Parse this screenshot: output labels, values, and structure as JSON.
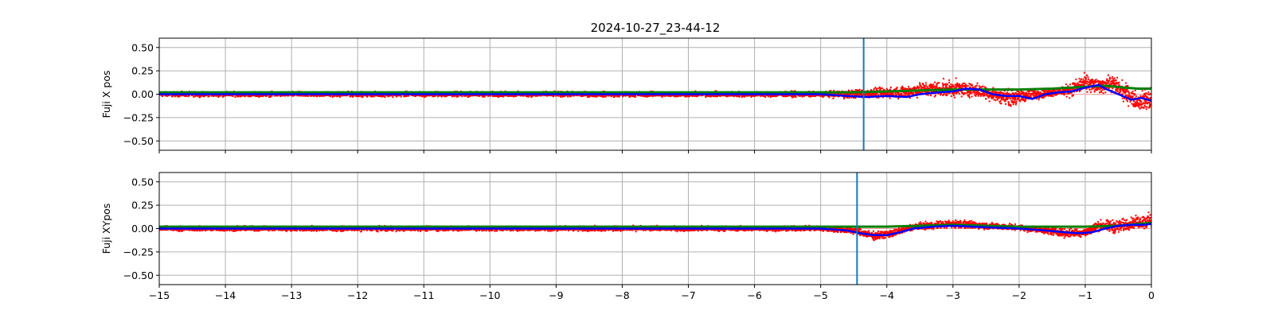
{
  "chart_data": {
    "type": "scatter",
    "title": "2024-10-27_23-44-12",
    "xlim": [
      -15,
      0
    ],
    "x_ticks": [
      -15,
      -14,
      -13,
      -12,
      -11,
      -10,
      -9,
      -8,
      -7,
      -6,
      -5,
      -4,
      -3,
      -2,
      -1,
      0
    ],
    "x_tick_labels": [
      "−15",
      "−14",
      "−13",
      "−12",
      "−11",
      "−10",
      "−9",
      "−8",
      "−7",
      "−6",
      "−5",
      "−4",
      "−3",
      "−2",
      "−1",
      "0"
    ],
    "grid": true,
    "colors": {
      "scatter": "#ff0000",
      "green_line": "#008000",
      "blue_line": "#0000ff",
      "vline": "#1f77b4",
      "zero_line": "#ff9999"
    },
    "panels": [
      {
        "ylabel": "Fuji X pos",
        "ylim": [
          -0.6,
          0.6
        ],
        "y_ticks": [
          0.5,
          0.25,
          0.0,
          -0.25,
          -0.5
        ],
        "y_tick_labels": [
          "0.50",
          "0.25",
          "0.00",
          "−0.25",
          "−0.50"
        ],
        "vline_x": -4.35,
        "show_x_tick_labels": false,
        "scatter_envelope": [
          [
            -15,
            0.0,
            0.035
          ],
          [
            -5,
            0.0,
            0.04
          ],
          [
            -4.6,
            0.0,
            0.06
          ],
          [
            -4.2,
            0.01,
            0.07
          ],
          [
            -3.8,
            0.02,
            0.08
          ],
          [
            -3.5,
            0.05,
            0.1
          ],
          [
            -3.0,
            0.06,
            0.12
          ],
          [
            -2.7,
            0.05,
            0.1
          ],
          [
            -2.4,
            0.0,
            0.1
          ],
          [
            -2.1,
            -0.04,
            0.12
          ],
          [
            -1.8,
            0.0,
            0.08
          ],
          [
            -1.5,
            0.02,
            0.06
          ],
          [
            -1.2,
            0.05,
            0.1
          ],
          [
            -1.0,
            0.12,
            0.13
          ],
          [
            -0.8,
            0.08,
            0.1
          ],
          [
            -0.6,
            0.12,
            0.12
          ],
          [
            -0.4,
            0.02,
            0.14
          ],
          [
            -0.2,
            -0.08,
            0.12
          ],
          [
            0.0,
            -0.05,
            0.2
          ]
        ],
        "green_line": [
          [
            -15,
            0.02
          ],
          [
            -12,
            0.02
          ],
          [
            -9,
            0.02
          ],
          [
            -6,
            0.02
          ],
          [
            -5,
            0.02
          ],
          [
            -4.5,
            0.02
          ],
          [
            -4.0,
            0.03
          ],
          [
            -3.5,
            0.04
          ],
          [
            -3.0,
            0.05
          ],
          [
            -2.5,
            0.05
          ],
          [
            -2.0,
            0.05
          ],
          [
            -1.5,
            0.06
          ],
          [
            -1.0,
            0.08
          ],
          [
            -0.7,
            0.09
          ],
          [
            -0.4,
            0.07
          ],
          [
            -0.2,
            0.06
          ],
          [
            0.0,
            0.06
          ]
        ],
        "blue_line": [
          [
            -15,
            0.0
          ],
          [
            -10,
            0.0
          ],
          [
            -5,
            0.0
          ],
          [
            -4.6,
            -0.02
          ],
          [
            -4.3,
            -0.03
          ],
          [
            -4.0,
            -0.02
          ],
          [
            -3.7,
            -0.03
          ],
          [
            -3.5,
            0.0
          ],
          [
            -3.2,
            0.02
          ],
          [
            -3.0,
            0.03
          ],
          [
            -2.8,
            0.06
          ],
          [
            -2.6,
            0.05
          ],
          [
            -2.4,
            0.0
          ],
          [
            -2.2,
            -0.02
          ],
          [
            -2.0,
            -0.02
          ],
          [
            -1.8,
            -0.05
          ],
          [
            -1.6,
            0.0
          ],
          [
            -1.4,
            0.02
          ],
          [
            -1.2,
            0.03
          ],
          [
            -1.0,
            0.07
          ],
          [
            -0.8,
            0.1
          ],
          [
            -0.7,
            0.06
          ],
          [
            -0.5,
            0.0
          ],
          [
            -0.3,
            -0.06
          ],
          [
            -0.15,
            -0.04
          ],
          [
            0.0,
            -0.07
          ]
        ]
      },
      {
        "ylabel": "Fuji XYpos",
        "ylim": [
          -0.6,
          0.6
        ],
        "y_ticks": [
          0.5,
          0.25,
          0.0,
          -0.25,
          -0.5
        ],
        "y_tick_labels": [
          "0.50",
          "0.25",
          "0.00",
          "−0.25",
          "−0.50"
        ],
        "vline_x": -4.45,
        "show_x_tick_labels": true,
        "scatter_envelope": [
          [
            -15,
            0.0,
            0.035
          ],
          [
            -5,
            0.0,
            0.035
          ],
          [
            -4.5,
            -0.02,
            0.05
          ],
          [
            -4.2,
            -0.08,
            0.06
          ],
          [
            -3.9,
            -0.05,
            0.05
          ],
          [
            -3.6,
            0.02,
            0.05
          ],
          [
            -3.0,
            0.05,
            0.06
          ],
          [
            -2.5,
            0.03,
            0.05
          ],
          [
            -2.0,
            0.01,
            0.04
          ],
          [
            -1.6,
            -0.02,
            0.05
          ],
          [
            -1.3,
            -0.05,
            0.06
          ],
          [
            -1.0,
            -0.04,
            0.06
          ],
          [
            -0.8,
            0.03,
            0.08
          ],
          [
            -0.5,
            0.02,
            0.1
          ],
          [
            -0.3,
            0.06,
            0.08
          ],
          [
            0.0,
            0.08,
            0.12
          ]
        ],
        "green_line": [
          [
            -15,
            0.02
          ],
          [
            -10,
            0.02
          ],
          [
            -5,
            0.02
          ],
          [
            -4.5,
            0.02
          ],
          [
            -4.0,
            0.02
          ],
          [
            -3.5,
            0.03
          ],
          [
            -3.0,
            0.04
          ],
          [
            -2.5,
            0.03
          ],
          [
            -2.0,
            0.02
          ],
          [
            -1.5,
            0.02
          ],
          [
            -1.0,
            0.02
          ],
          [
            -0.5,
            0.03
          ],
          [
            -0.2,
            0.05
          ],
          [
            0.0,
            0.06
          ]
        ],
        "blue_line": [
          [
            -15,
            0.0
          ],
          [
            -10,
            0.0
          ],
          [
            -5,
            0.0
          ],
          [
            -4.6,
            -0.02
          ],
          [
            -4.4,
            -0.05
          ],
          [
            -4.2,
            -0.07
          ],
          [
            -4.0,
            -0.07
          ],
          [
            -3.8,
            -0.04
          ],
          [
            -3.6,
            0.0
          ],
          [
            -3.3,
            0.02
          ],
          [
            -3.0,
            0.03
          ],
          [
            -2.7,
            0.02
          ],
          [
            -2.4,
            0.01
          ],
          [
            -2.0,
            0.0
          ],
          [
            -1.6,
            -0.02
          ],
          [
            -1.3,
            -0.04
          ],
          [
            -1.1,
            -0.05
          ],
          [
            -0.9,
            -0.04
          ],
          [
            -0.7,
            0.0
          ],
          [
            -0.5,
            0.03
          ],
          [
            -0.3,
            0.04
          ],
          [
            -0.1,
            0.04
          ],
          [
            0.0,
            0.05
          ]
        ]
      }
    ]
  }
}
